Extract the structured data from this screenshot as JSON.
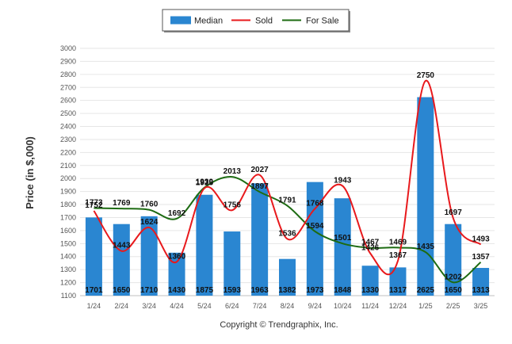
{
  "chart_data": {
    "type": "bar",
    "ylabel": "Price (in $,000)",
    "ylim": [
      1100,
      3000
    ],
    "yticks": [
      1100,
      1200,
      1300,
      1400,
      1500,
      1600,
      1700,
      1800,
      1900,
      2000,
      2100,
      2200,
      2300,
      2400,
      2500,
      2600,
      2700,
      2800,
      2900,
      3000
    ],
    "grid": true,
    "legend_position": "top-center",
    "categories": [
      "1/24",
      "2/24",
      "3/24",
      "4/24",
      "5/24",
      "6/24",
      "7/24",
      "8/24",
      "9/24",
      "10/24",
      "11/24",
      "12/24",
      "1/25",
      "2/25",
      "3/25"
    ],
    "series": [
      {
        "name": "Median",
        "type": "bar",
        "color": "#2a86d1",
        "values": [
          1701,
          1650,
          1710,
          1430,
          1875,
          1593,
          1963,
          1382,
          1973,
          1848,
          1330,
          1317,
          2625,
          1650,
          1313
        ]
      },
      {
        "name": "Sold",
        "type": "line",
        "color": "#e8191c",
        "values": [
          1752,
          1443,
          1624,
          1360,
          1925,
          1756,
          2027,
          1536,
          1768,
          1943,
          1426,
          1367,
          2750,
          1697,
          1493
        ]
      },
      {
        "name": "For Sale",
        "type": "line",
        "color": "#1d6b12",
        "values": [
          1773,
          1769,
          1760,
          1692,
          1930,
          2013,
          1897,
          1791,
          1594,
          1501,
          1467,
          1469,
          1435,
          1202,
          1357
        ]
      }
    ]
  },
  "footer": {
    "copyright": "Copyright © Trendgraphix, Inc."
  }
}
